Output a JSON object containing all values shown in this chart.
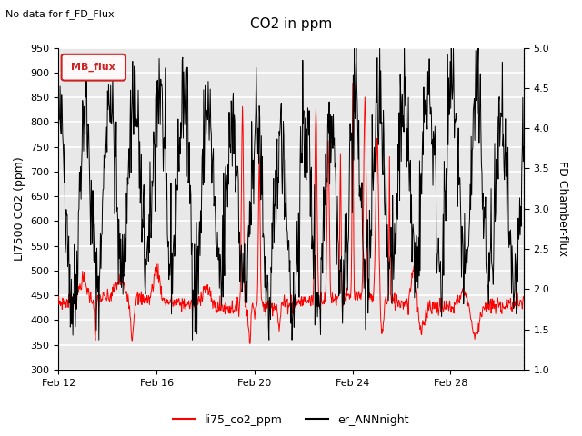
{
  "title": "CO2 in ppm",
  "top_note": "No data for f_FD_Flux",
  "ylabel_left": "LI7500 CO2 (ppm)",
  "ylabel_right": "FD Chamber-flux",
  "ylim_left": [
    300,
    950
  ],
  "ylim_right": [
    1.0,
    5.0
  ],
  "yticks_left": [
    300,
    350,
    400,
    450,
    500,
    550,
    600,
    650,
    700,
    750,
    800,
    850,
    900,
    950
  ],
  "yticks_right": [
    1.0,
    1.5,
    2.0,
    2.5,
    3.0,
    3.5,
    4.0,
    4.5,
    5.0
  ],
  "xtick_labels": [
    "Feb 12",
    "Feb 16",
    "Feb 20",
    "Feb 24",
    "Feb 28"
  ],
  "xtick_positions": [
    0,
    4,
    8,
    12,
    16
  ],
  "legend_entries": [
    "li75_co2_ppm",
    "er_ANNnight"
  ],
  "legend_colors": [
    "red",
    "black"
  ],
  "mb_flux_box_facecolor": "#fff8f8",
  "mb_flux_box_edgecolor": "#cc2222",
  "mb_flux_text_color": "#cc2222",
  "plot_bg_color": "#e8e8e8",
  "grid_color": "white",
  "line_color_red": "red",
  "line_color_black": "black",
  "fig_size": [
    6.4,
    4.8
  ],
  "dpi": 100
}
